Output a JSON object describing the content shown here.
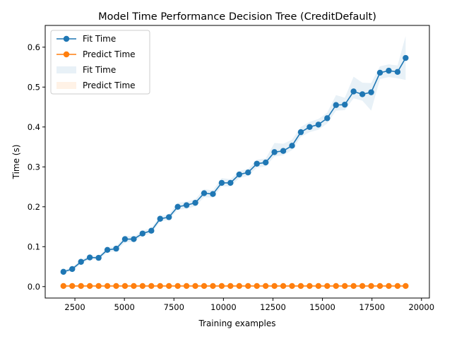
{
  "chart_data": {
    "type": "line",
    "title": "Model Time Performance Decision Tree (CreditDefault)",
    "xlabel": "Training examples",
    "ylabel": "Time (s)",
    "xlim": [
      1000,
      20400
    ],
    "ylim": [
      -0.0287,
      0.6545
    ],
    "x_ticks": [
      2500,
      5000,
      7500,
      10000,
      12500,
      15000,
      17500,
      20000
    ],
    "x_tick_labels": [
      "2500",
      "5000",
      "7500",
      "10000",
      "12500",
      "15000",
      "17500",
      "20000"
    ],
    "y_ticks": [
      0.0,
      0.1,
      0.2,
      0.3,
      0.4,
      0.5,
      0.6
    ],
    "y_tick_labels": [
      "0.0",
      "0.1",
      "0.2",
      "0.3",
      "0.4",
      "0.5",
      "0.6"
    ],
    "grid": false,
    "legend_position": "top-left",
    "x": [
      1920,
      2364,
      2808,
      3252,
      3696,
      4140,
      4584,
      5028,
      5472,
      5916,
      6360,
      6804,
      7248,
      7692,
      8136,
      8580,
      9024,
      9468,
      9912,
      10356,
      10800,
      11244,
      11688,
      12132,
      12576,
      13020,
      13464,
      13908,
      14352,
      14796,
      15240,
      15684,
      16128,
      16572,
      17016,
      17460,
      17904,
      18348,
      18792,
      19200
    ],
    "series": [
      {
        "name": "Fit Time",
        "color": "#1f77b4",
        "values": [
          0.037,
          0.044,
          0.062,
          0.073,
          0.072,
          0.092,
          0.095,
          0.119,
          0.119,
          0.133,
          0.14,
          0.17,
          0.174,
          0.2,
          0.204,
          0.21,
          0.234,
          0.232,
          0.26,
          0.26,
          0.281,
          0.286,
          0.308,
          0.311,
          0.337,
          0.34,
          0.353,
          0.387,
          0.4,
          0.406,
          0.422,
          0.455,
          0.456,
          0.489,
          0.482,
          0.487,
          0.536,
          0.541,
          0.538,
          0.573
        ],
        "band_lower": [
          0.033,
          0.039,
          0.057,
          0.068,
          0.067,
          0.086,
          0.089,
          0.11,
          0.113,
          0.126,
          0.133,
          0.163,
          0.167,
          0.192,
          0.195,
          0.201,
          0.224,
          0.223,
          0.251,
          0.251,
          0.272,
          0.277,
          0.298,
          0.301,
          0.326,
          0.329,
          0.342,
          0.375,
          0.387,
          0.393,
          0.409,
          0.441,
          0.442,
          0.472,
          0.466,
          0.441,
          0.52,
          0.525,
          0.522,
          0.518
        ],
        "band_upper": [
          0.041,
          0.049,
          0.067,
          0.078,
          0.077,
          0.098,
          0.101,
          0.128,
          0.125,
          0.14,
          0.147,
          0.177,
          0.181,
          0.21,
          0.213,
          0.219,
          0.244,
          0.241,
          0.272,
          0.269,
          0.29,
          0.295,
          0.318,
          0.321,
          0.36,
          0.358,
          0.368,
          0.4,
          0.413,
          0.42,
          0.436,
          0.48,
          0.473,
          0.526,
          0.511,
          0.51,
          0.552,
          0.557,
          0.554,
          0.628
        ]
      },
      {
        "name": "Predict Time",
        "color": "#ff7f0e",
        "values": [
          0.0015,
          0.0015,
          0.0015,
          0.0015,
          0.0015,
          0.0015,
          0.0015,
          0.0015,
          0.0015,
          0.0015,
          0.0015,
          0.0015,
          0.0015,
          0.0015,
          0.0015,
          0.0015,
          0.0015,
          0.0015,
          0.0015,
          0.0015,
          0.0015,
          0.0015,
          0.0015,
          0.0015,
          0.0015,
          0.0015,
          0.0015,
          0.0015,
          0.0015,
          0.0015,
          0.0015,
          0.0015,
          0.0015,
          0.0015,
          0.0015,
          0.0015,
          0.0015,
          0.0015,
          0.0015,
          0.0015
        ],
        "band_lower": [
          0.0012,
          0.0012,
          0.0012,
          0.0012,
          0.0012,
          0.0012,
          0.0012,
          0.0012,
          0.0012,
          0.0012,
          0.0012,
          0.0012,
          0.0012,
          0.0012,
          0.0012,
          0.0012,
          0.0012,
          0.0012,
          0.0012,
          0.0012,
          0.0012,
          0.0012,
          0.0012,
          0.0012,
          0.0012,
          0.0012,
          0.0012,
          0.0012,
          0.0012,
          0.0012,
          0.0012,
          0.0012,
          0.0012,
          0.0012,
          0.0012,
          0.0012,
          0.0012,
          0.0012,
          0.0012,
          0.0012
        ],
        "band_upper": [
          0.0018,
          0.0018,
          0.0018,
          0.0018,
          0.0018,
          0.0018,
          0.0018,
          0.0018,
          0.0018,
          0.0018,
          0.0018,
          0.0018,
          0.0018,
          0.0018,
          0.0018,
          0.0018,
          0.0018,
          0.0018,
          0.0018,
          0.0018,
          0.0018,
          0.0018,
          0.0018,
          0.0018,
          0.0018,
          0.0018,
          0.0018,
          0.0018,
          0.0018,
          0.0018,
          0.0018,
          0.0018,
          0.0018,
          0.0018,
          0.0018,
          0.0018,
          0.0018,
          0.0018,
          0.0018,
          0.0018
        ]
      }
    ],
    "legend": [
      {
        "label": "Fit Time",
        "kind": "line",
        "color": "#1f77b4"
      },
      {
        "label": "Predict Time",
        "kind": "line",
        "color": "#ff7f0e"
      },
      {
        "label": "Fit Time",
        "kind": "band",
        "color": "#1f77b4"
      },
      {
        "label": "Predict Time",
        "kind": "band",
        "color": "#ff7f0e"
      }
    ]
  }
}
